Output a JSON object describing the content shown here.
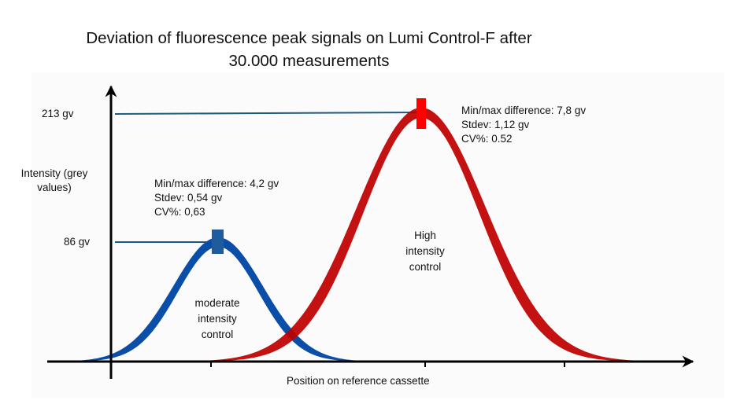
{
  "title": {
    "line1": "Deviation of fluorescence peak signals on Lumi Control-F after",
    "line2": "30.000 measurements"
  },
  "y_axis": {
    "label_line1": "Intensity (grey",
    "label_line2": "values)",
    "ticks": [
      {
        "label": "213 gv",
        "value": 213
      },
      {
        "label": "86 gv",
        "value": 86
      }
    ]
  },
  "x_axis": {
    "label": "Position on reference cassette"
  },
  "colors": {
    "moderate_band": "#0a4ea8",
    "moderate_marker": "#1f5c9e",
    "high_band": "#c00000",
    "high_marker": "#ff0000",
    "reference_line": "#1c5a80",
    "axis": "#000000"
  },
  "controls": {
    "moderate": {
      "label_line1": "moderate",
      "label_line2": "intensity",
      "label_line3": "control",
      "peak_value": 86,
      "stats": {
        "minmax": "Min/max difference: 4,2 gv",
        "stdev": "Stdev:  0,54 gv",
        "cv": "CV%:  0,63"
      }
    },
    "high": {
      "label_line1": "High",
      "label_line2": "intensity",
      "label_line3": "control",
      "peak_value": 213,
      "stats": {
        "minmax": "Min/max difference: 7,8 gv",
        "stdev": "Stdev:  1,12 gv",
        "cv": "CV%:  0.52"
      }
    }
  }
}
